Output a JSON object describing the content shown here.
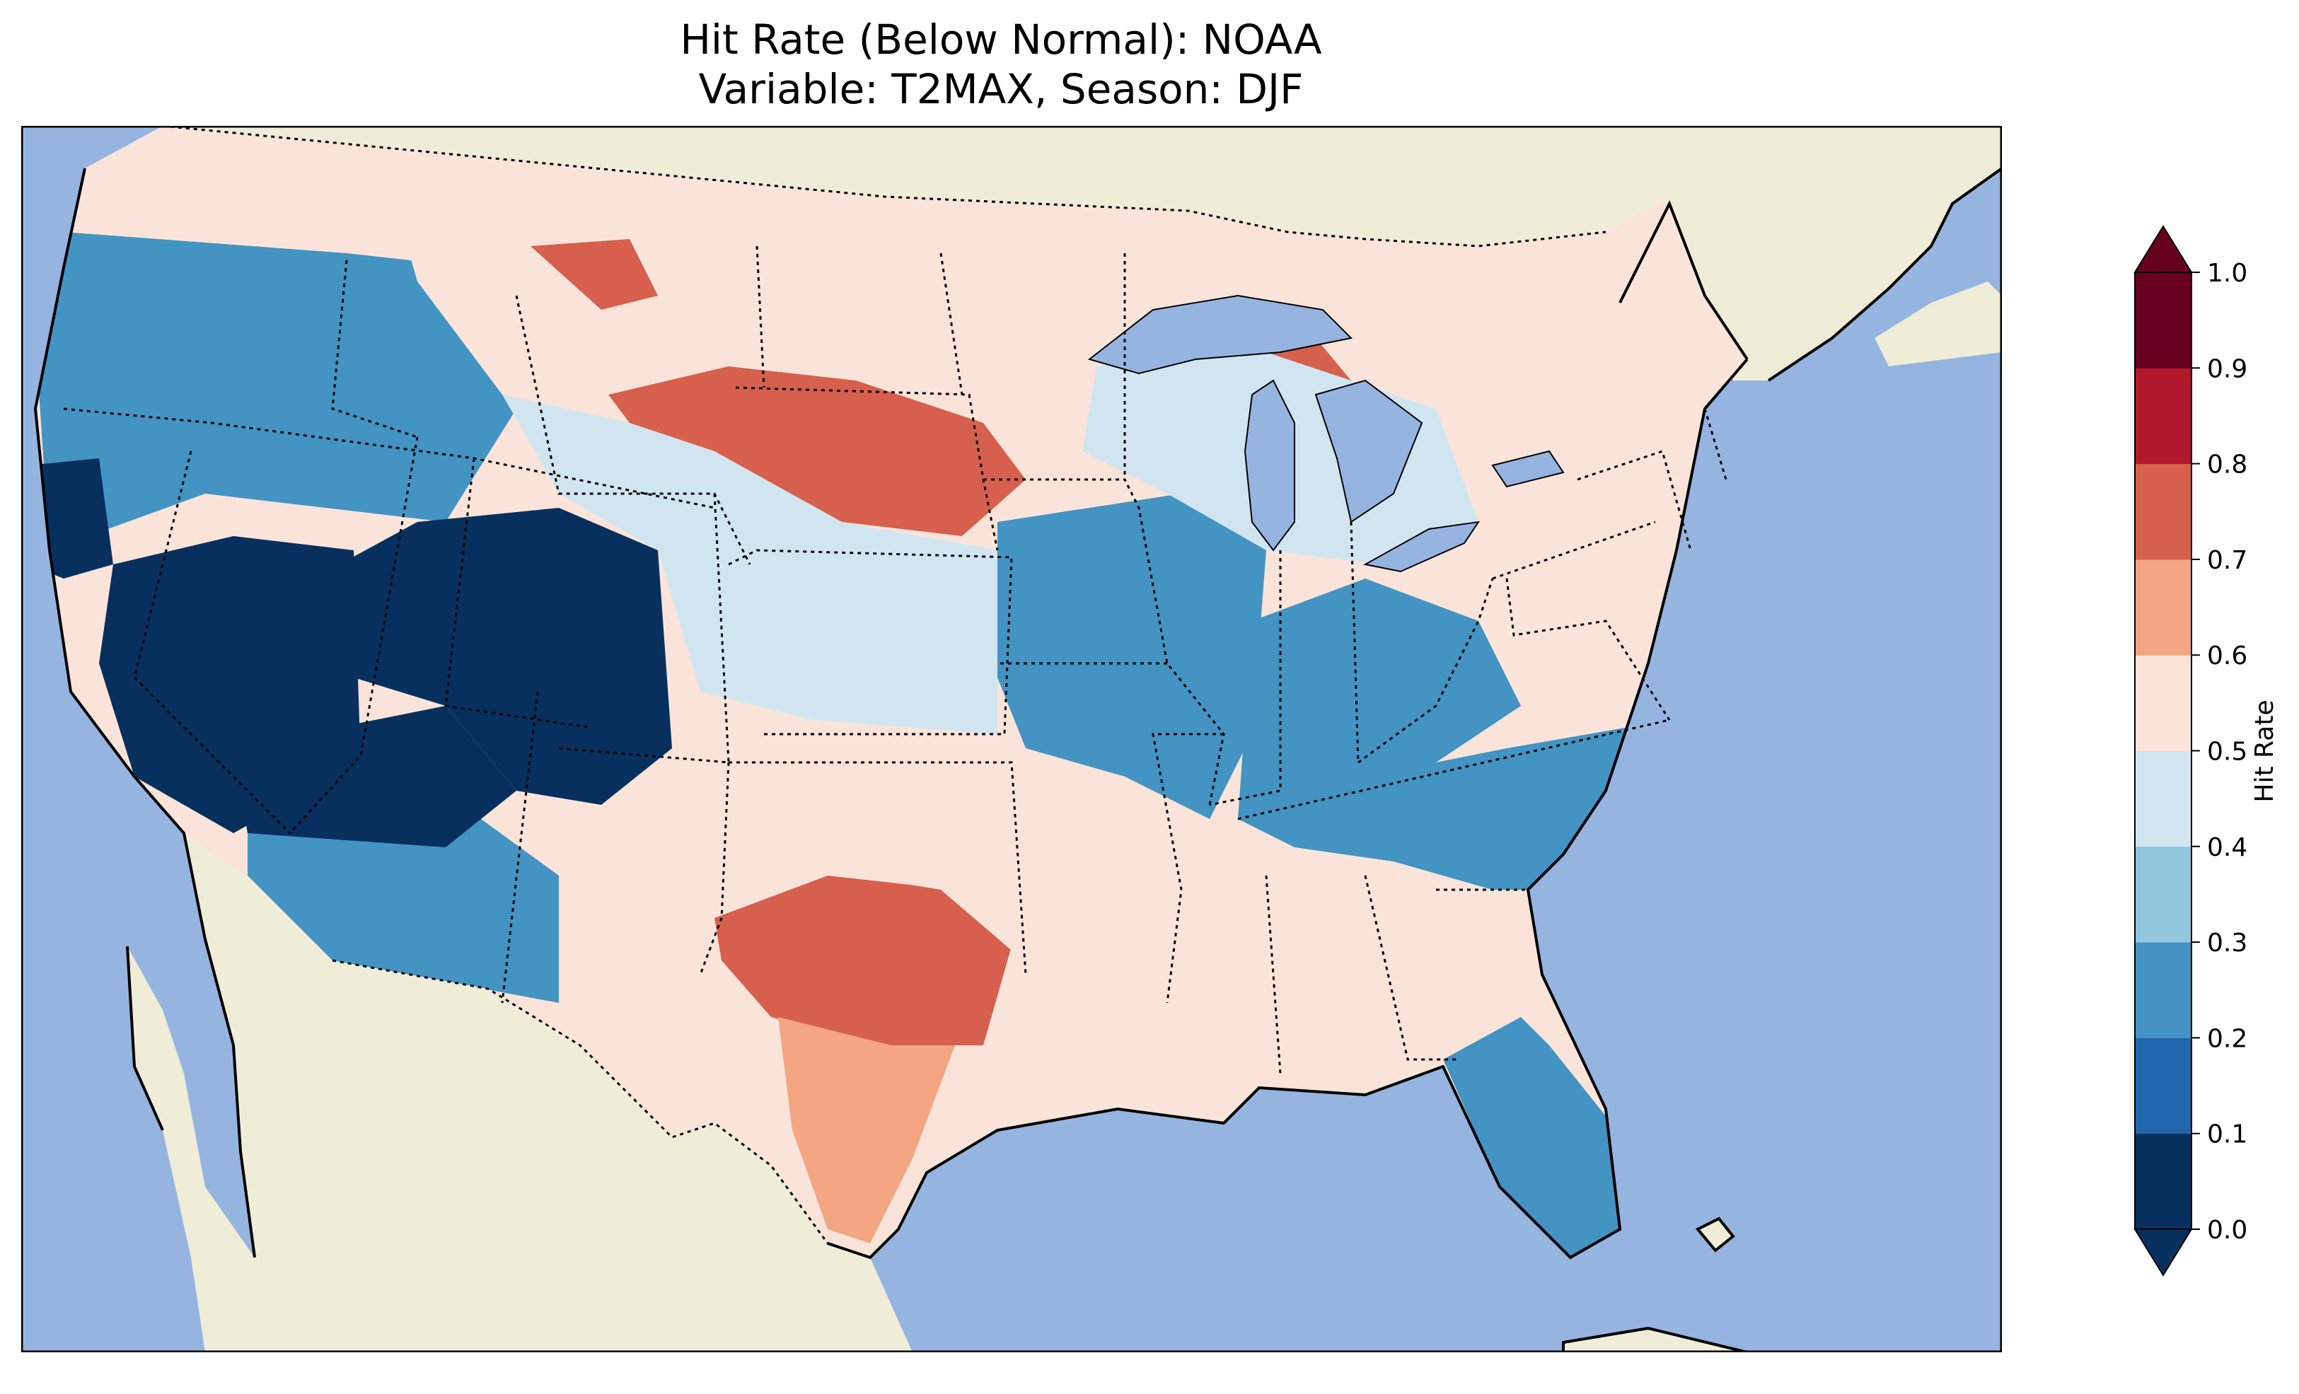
{
  "title": {
    "line1": "Hit Rate (Below Normal): NOAA",
    "line2": "Variable: T2MAX, Season: DJF"
  },
  "colors": {
    "ocean": "#96b4e0",
    "land": "#efedd8",
    "border": "#000000"
  },
  "colorbar": {
    "label": "Hit Rate",
    "ticks": [
      "0.0",
      "0.1",
      "0.2",
      "0.3",
      "0.4",
      "0.5",
      "0.6",
      "0.7",
      "0.8",
      "0.9",
      "1.0"
    ],
    "bins": [
      {
        "range": [
          0.0,
          0.1
        ],
        "color": "#08305e"
      },
      {
        "range": [
          0.1,
          0.2
        ],
        "color": "#2166ab"
      },
      {
        "range": [
          0.2,
          0.3
        ],
        "color": "#4393c3"
      },
      {
        "range": [
          0.3,
          0.4
        ],
        "color": "#92c5de"
      },
      {
        "range": [
          0.4,
          0.5
        ],
        "color": "#d1e5f0"
      },
      {
        "range": [
          0.5,
          0.6
        ],
        "color": "#fae4da"
      },
      {
        "range": [
          0.6,
          0.7
        ],
        "color": "#f4a582"
      },
      {
        "range": [
          0.7,
          0.8
        ],
        "color": "#d6604d"
      },
      {
        "range": [
          0.8,
          0.9
        ],
        "color": "#b2182b"
      },
      {
        "range": [
          0.9,
          1.0
        ],
        "color": "#67001f"
      }
    ],
    "extend_low_color": "#08305e",
    "extend_high_color": "#67001f"
  },
  "regions": [
    {
      "name": "pacific-northwest",
      "value": 0.28
    },
    {
      "name": "northern-california-coast",
      "value": 0.05
    },
    {
      "name": "great-basin",
      "value": 0.05
    },
    {
      "name": "southwest-desert",
      "value": 0.05
    },
    {
      "name": "central-rockies",
      "value": 0.05
    },
    {
      "name": "arizona-south",
      "value": 0.25
    },
    {
      "name": "montana-north",
      "value": 0.55
    },
    {
      "name": "northern-plains",
      "value": 0.75
    },
    {
      "name": "texas-central",
      "value": 0.75
    },
    {
      "name": "texas-south",
      "value": 0.65
    },
    {
      "name": "southern-plains",
      "value": 0.55
    },
    {
      "name": "midwest",
      "value": 0.25
    },
    {
      "name": "ohio-valley",
      "value": 0.25
    },
    {
      "name": "southeast",
      "value": 0.55
    },
    {
      "name": "florida",
      "value": 0.25
    },
    {
      "name": "northeast",
      "value": 0.55
    },
    {
      "name": "upper-michigan",
      "value": 0.75
    },
    {
      "name": "great-lakes-belt",
      "value": 0.45
    }
  ]
}
